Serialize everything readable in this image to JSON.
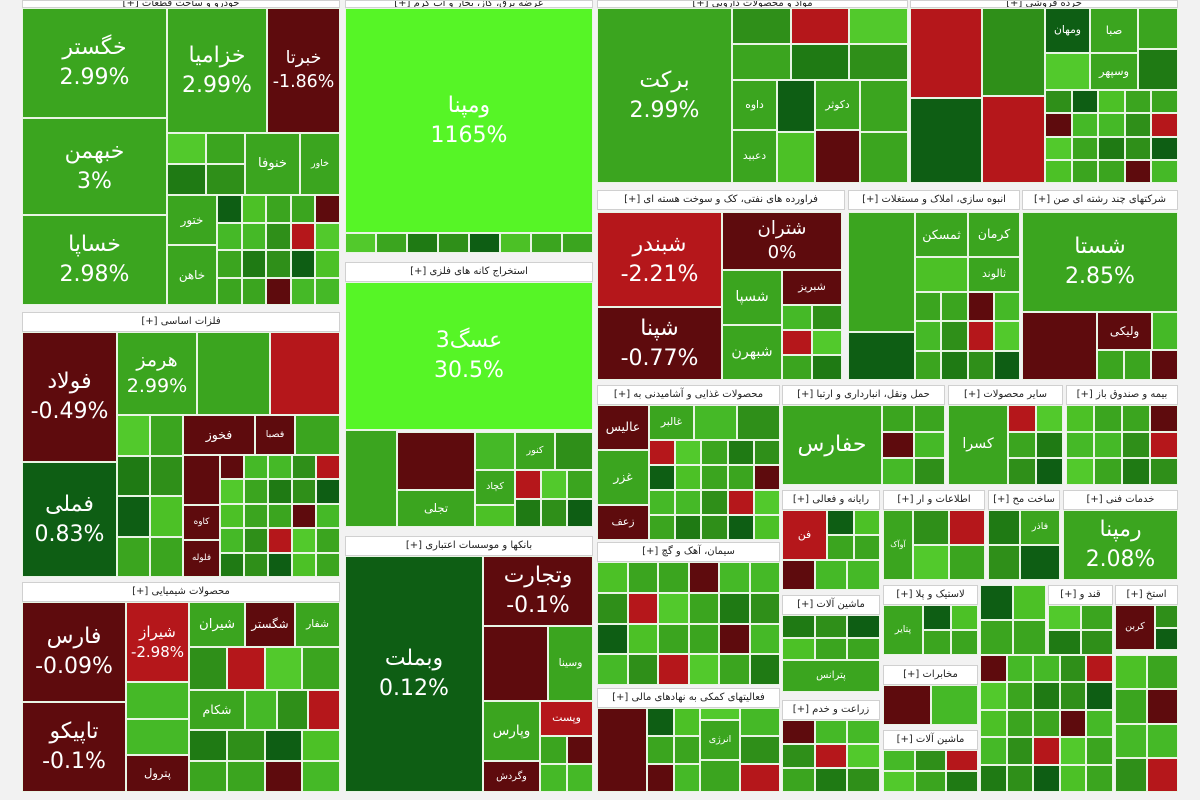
{
  "sectors": [
    {
      "title": "خودرو و ساخت قطعات [+]",
      "tiles": [
        {
          "label": "خگستر",
          "change": "2.99%"
        },
        {
          "label": "خبهمن",
          "change": "3%"
        },
        {
          "label": "خساپا",
          "change": "2.98%"
        },
        {
          "label": "خزامیا",
          "change": "2.99%"
        },
        {
          "label": "خبرتا",
          "change": "-1.86%"
        },
        {
          "label": "خاور"
        },
        {
          "label": "خنوفا"
        },
        {
          "label": "ختور"
        },
        {
          "label": "خاهن"
        }
      ]
    },
    {
      "title": "فلزات اساسی [+]",
      "tiles": [
        {
          "label": "فولاد",
          "change": "-0.49%"
        },
        {
          "label": "فملی",
          "change": "0.83%"
        },
        {
          "label": "فخوز"
        },
        {
          "label": "فصبا"
        },
        {
          "label": "کاوه"
        },
        {
          "label": "فلوله"
        },
        {
          "label": "هرمز",
          "change": "2.99%"
        }
      ]
    },
    {
      "title": "محصولات شیمیایی [+]",
      "tiles": [
        {
          "label": "فارس",
          "change": "-0.09%"
        },
        {
          "label": "تاپیکو",
          "change": "-0.1%"
        },
        {
          "label": "شیراز",
          "change": "-2.98%"
        },
        {
          "label": "شگستر"
        },
        {
          "label": "شیران"
        },
        {
          "label": "شفار"
        },
        {
          "label": "شکام"
        },
        {
          "label": "پترول"
        }
      ]
    },
    {
      "title": "عرضه برق، گاز، بخار و آب گرم [+]",
      "tiles": [
        {
          "label": "ومپنا",
          "change": "1165%"
        }
      ]
    },
    {
      "title": "استخراج کانه های فلزی [+]",
      "tiles": [
        {
          "label": "عسگ3",
          "change": "30.5%"
        },
        {
          "label": "کچاد"
        },
        {
          "label": "کنور"
        },
        {
          "label": "تجلی"
        }
      ]
    },
    {
      "title": "بانکها و موسسات اعتباری [+]",
      "tiles": [
        {
          "label": "وبملت",
          "change": "0.12%"
        },
        {
          "label": "وتجارت",
          "change": "-0.1%"
        },
        {
          "label": "وسینا"
        },
        {
          "label": "وپست"
        },
        {
          "label": "وپارس"
        },
        {
          "label": "وگردش"
        }
      ]
    },
    {
      "title": "مواد و محصولات دارویی [+]",
      "tiles": [
        {
          "label": "برکت",
          "change": "2.99%"
        },
        {
          "label": "دکوثر"
        },
        {
          "label": "داوه"
        },
        {
          "label": "دعبید"
        }
      ]
    },
    {
      "title": "خرده فروشی [+]",
      "tiles": [
        {
          "label": "صبا"
        },
        {
          "label": "ومهان"
        },
        {
          "label": "وسپهر"
        }
      ]
    },
    {
      "title": "فراورده های نفتی، کک و سوخت هسته ای [+]",
      "tiles": [
        {
          "label": "شبندر",
          "change": "-2.21%"
        },
        {
          "label": "شپنا",
          "change": "-0.77%"
        },
        {
          "label": "شتران",
          "change": "0%"
        },
        {
          "label": "شبریز"
        },
        {
          "label": "شسپا"
        },
        {
          "label": "شبهرن"
        }
      ]
    },
    {
      "title": "انبوه سازی، املاک و مستغلات [+]",
      "tiles": [
        {
          "label": "کرمان"
        },
        {
          "label": "ثمسکن"
        },
        {
          "label": "ثالوند"
        }
      ]
    },
    {
      "title": "شرکتهای چند رشته ای صن [+]",
      "tiles": [
        {
          "label": "شستا",
          "change": "2.85%"
        },
        {
          "label": "ولیکی"
        }
      ]
    },
    {
      "title": "محصولات غذایی و آشامیدنی به [+]",
      "tiles": [
        {
          "label": "عالیس"
        },
        {
          "label": "غزر"
        },
        {
          "label": "غالبر"
        },
        {
          "label": "زعف"
        }
      ]
    },
    {
      "title": "حمل ونقل، انبارداری و ارتبا [+]",
      "tiles": [
        {
          "label": "حفارس"
        }
      ]
    },
    {
      "title": "سایر محصولات [+]",
      "tiles": [
        {
          "label": "کسرا"
        }
      ]
    },
    {
      "title": "بیمه و صندوق باز [+]",
      "tiles": []
    },
    {
      "title": "رایانه و فعالی [+]",
      "tiles": [
        {
          "label": "فن"
        }
      ]
    },
    {
      "title": "اطلاعات و ار [+]",
      "tiles": [
        {
          "label": "آوآک"
        }
      ]
    },
    {
      "title": "ساخت مح [+]",
      "tiles": [
        {
          "label": "فاذر"
        }
      ]
    },
    {
      "title": "خدمات فنی [+]",
      "tiles": [
        {
          "label": "رمپنا",
          "change": "2.08%"
        }
      ]
    },
    {
      "title": "سیمان، آهک و گچ [+]",
      "tiles": []
    },
    {
      "title": "فعالیتهای کمکی به نهادهای مالی [+]",
      "tiles": [
        {
          "label": "انرژی"
        }
      ]
    },
    {
      "title": "ماشین آلات [+]",
      "tiles": [
        {
          "label": "پترانس"
        }
      ]
    },
    {
      "title": "زراعت و خدم [+]",
      "tiles": []
    },
    {
      "title": "لاستیک و پلا [+]",
      "tiles": [
        {
          "label": "پتایر"
        }
      ]
    },
    {
      "title": "مخابرات [+]",
      "tiles": []
    },
    {
      "title": "ماشین آلات [+]",
      "tiles": []
    },
    {
      "title": "استخ [+]",
      "tiles": [
        {
          "label": "کربن"
        }
      ]
    },
    {
      "title": "قند و [+]",
      "tiles": []
    }
  ]
}
